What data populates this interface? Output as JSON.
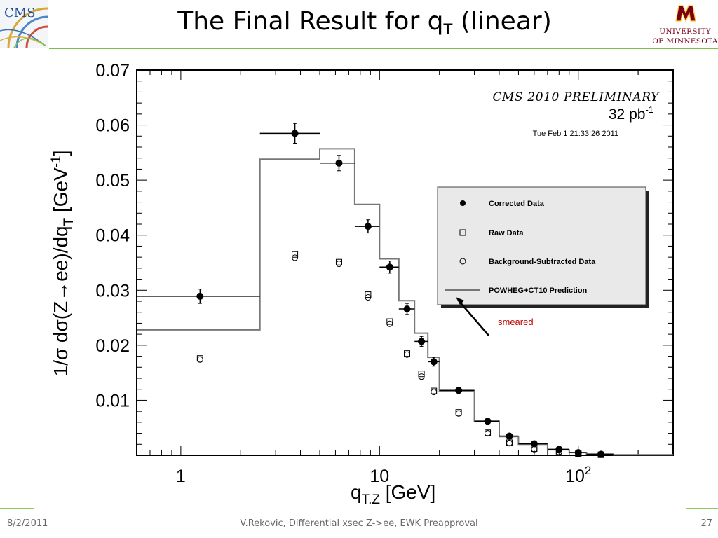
{
  "slide": {
    "title_main": "The Final Result for q",
    "title_sub": "T",
    "title_tail": " (linear)",
    "logo_left_text": "CMS",
    "university_line1": "UNIVERSITY",
    "university_line2": "OF MINNESOTA",
    "footer_date": "8/2/2011",
    "footer_center": "V.Rekovic, Differential xsec Z->ee, EWK Preapproval",
    "footer_page": "27",
    "colors": {
      "accent_green": "#7cc04a",
      "umn_maroon": "#7a0019",
      "umn_gold": "#ffcc33"
    }
  },
  "chart_data": {
    "type": "scatter",
    "xscale": "log",
    "xlim": [
      0.6,
      300
    ],
    "ylim": [
      0,
      0.07
    ],
    "xtick_labels": [
      {
        "x": 1,
        "label": "1"
      },
      {
        "x": 10,
        "label": "10"
      },
      {
        "x": 100,
        "label": "10",
        "sup": "2"
      }
    ],
    "ytick_labels": [
      "0.01",
      "0.02",
      "0.03",
      "0.04",
      "0.05",
      "0.06",
      "0.07"
    ],
    "yticks": [
      0.01,
      0.02,
      0.03,
      0.04,
      0.05,
      0.06,
      0.07
    ],
    "xlabel": {
      "main": "q",
      "sub": "T,Z",
      "tail": " [GeV]"
    },
    "ylabel": {
      "part1": "1/σ dσ(Z",
      "arrow": "→",
      "part2": "ee)/dq",
      "sub": "T",
      "part3": " [GeV",
      "sup": "-1",
      "part4": "]"
    },
    "annotation_cms": "CMS 2010 PRELIMINARY",
    "annotation_lumi": "32 pb",
    "annotation_lumi_sup": "-1",
    "annotation_date": "Tue Feb  1 21:33:26 2011",
    "callout_text": "smeared",
    "legend": {
      "placement": "right",
      "entries": [
        {
          "label": "Corrected Data",
          "marker": "filled-circle"
        },
        {
          "label": "Raw Data",
          "marker": "open-square"
        },
        {
          "label": "Background-Subtracted Data",
          "marker": "open-circle"
        },
        {
          "label": "POWHEG+CT10 Prediction",
          "marker": "line"
        }
      ]
    },
    "series": [
      {
        "name": "Corrected Data",
        "marker": "filled-circle",
        "points": [
          {
            "x": 1.25,
            "xlo": 0.6,
            "xhi": 2.5,
            "y": 0.0289,
            "yerr": 0.0013
          },
          {
            "x": 3.75,
            "xlo": 2.5,
            "xhi": 5,
            "y": 0.0585,
            "yerr": 0.0018
          },
          {
            "x": 6.25,
            "xlo": 5,
            "xhi": 7.5,
            "y": 0.0531,
            "yerr": 0.0014
          },
          {
            "x": 8.75,
            "xlo": 7.5,
            "xhi": 10,
            "y": 0.0416,
            "yerr": 0.0012
          },
          {
            "x": 11.25,
            "xlo": 10,
            "xhi": 12.5,
            "y": 0.0342,
            "yerr": 0.0011
          },
          {
            "x": 13.75,
            "xlo": 12.5,
            "xhi": 15,
            "y": 0.0266,
            "yerr": 0.001
          },
          {
            "x": 16.25,
            "xlo": 15,
            "xhi": 17.5,
            "y": 0.0207,
            "yerr": 0.0009
          },
          {
            "x": 18.75,
            "xlo": 17.5,
            "xhi": 20,
            "y": 0.017,
            "yerr": 0.0008
          },
          {
            "x": 25,
            "xlo": 20,
            "xhi": 30,
            "y": 0.0118,
            "yerr": 0.0003
          },
          {
            "x": 35,
            "xlo": 30,
            "xhi": 40,
            "y": 0.0062,
            "yerr": 0.0002
          },
          {
            "x": 45,
            "xlo": 40,
            "xhi": 50,
            "y": 0.0035,
            "yerr": 0.0002
          },
          {
            "x": 60,
            "xlo": 50,
            "xhi": 70,
            "y": 0.0021,
            "yerr": 0.0001
          },
          {
            "x": 80,
            "xlo": 70,
            "xhi": 90,
            "y": 0.0011,
            "yerr": 0.0001
          },
          {
            "x": 100,
            "xlo": 90,
            "xhi": 110,
            "y": 0.0005,
            "yerr": 0.0001
          },
          {
            "x": 130,
            "xlo": 110,
            "xhi": 150,
            "y": 0.0002,
            "yerr": 0.0001
          }
        ]
      },
      {
        "name": "Raw Data",
        "marker": "open-square",
        "points": [
          {
            "x": 1.25,
            "y": 0.0176
          },
          {
            "x": 3.75,
            "y": 0.0365
          },
          {
            "x": 6.25,
            "y": 0.0351
          },
          {
            "x": 8.75,
            "y": 0.0292
          },
          {
            "x": 11.25,
            "y": 0.0243
          },
          {
            "x": 13.75,
            "y": 0.0185
          },
          {
            "x": 16.25,
            "y": 0.0148
          },
          {
            "x": 18.75,
            "y": 0.0117
          },
          {
            "x": 25,
            "y": 0.0078
          },
          {
            "x": 35,
            "y": 0.0041
          },
          {
            "x": 45,
            "y": 0.0023
          },
          {
            "x": 60,
            "y": 0.0012
          },
          {
            "x": 80,
            "y": 0.0006
          },
          {
            "x": 100,
            "y": 0.0003
          },
          {
            "x": 130,
            "y": 0.0001
          }
        ]
      },
      {
        "name": "Background-Subtracted Data",
        "marker": "open-circle",
        "points": [
          {
            "x": 1.25,
            "y": 0.0174
          },
          {
            "x": 3.75,
            "y": 0.0359
          },
          {
            "x": 6.25,
            "y": 0.0348
          },
          {
            "x": 8.75,
            "y": 0.0287
          },
          {
            "x": 11.25,
            "y": 0.0239
          },
          {
            "x": 13.75,
            "y": 0.0183
          },
          {
            "x": 16.25,
            "y": 0.0143
          },
          {
            "x": 18.75,
            "y": 0.0115
          },
          {
            "x": 25,
            "y": 0.0076
          },
          {
            "x": 35,
            "y": 0.004
          },
          {
            "x": 45,
            "y": 0.0022
          },
          {
            "x": 60,
            "y": 0.0011
          },
          {
            "x": 80,
            "y": 0.0006
          },
          {
            "x": 100,
            "y": 0.0003
          },
          {
            "x": 130,
            "y": 0.0001
          }
        ]
      }
    ],
    "prediction": {
      "name": "POWHEG+CT10 Prediction",
      "color": "#777777",
      "bins": [
        {
          "xlo": 0.6,
          "xhi": 2.5,
          "y": 0.0228
        },
        {
          "xlo": 2.5,
          "xhi": 5,
          "y": 0.0538
        },
        {
          "xlo": 5,
          "xhi": 7.5,
          "y": 0.0557
        },
        {
          "xlo": 7.5,
          "xhi": 10,
          "y": 0.0456
        },
        {
          "xlo": 10,
          "xhi": 12.5,
          "y": 0.0357
        },
        {
          "xlo": 12.5,
          "xhi": 15,
          "y": 0.0281
        },
        {
          "xlo": 15,
          "xhi": 17.5,
          "y": 0.0222
        },
        {
          "xlo": 17.5,
          "xhi": 20,
          "y": 0.0178
        },
        {
          "xlo": 20,
          "xhi": 30,
          "y": 0.0117
        },
        {
          "xlo": 30,
          "xhi": 40,
          "y": 0.0062
        },
        {
          "xlo": 40,
          "xhi": 50,
          "y": 0.0034
        },
        {
          "xlo": 50,
          "xhi": 70,
          "y": 0.002
        },
        {
          "xlo": 70,
          "xhi": 90,
          "y": 0.001
        },
        {
          "xlo": 90,
          "xhi": 110,
          "y": 0.0005
        },
        {
          "xlo": 110,
          "xhi": 150,
          "y": 0.0002
        },
        {
          "xlo": 150,
          "xhi": 300,
          "y": 0.0001
        }
      ]
    }
  }
}
